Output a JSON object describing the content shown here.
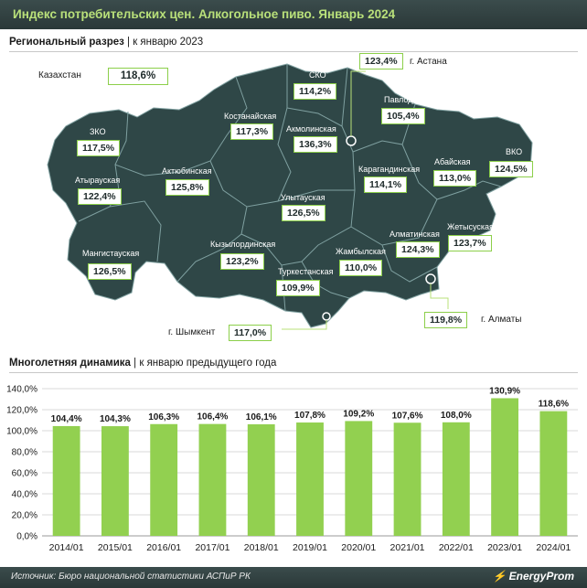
{
  "title": "Индекс потребительских цен. Алкогольное пиво. Январь 2024",
  "regional": {
    "heading_bold": "Региональный разрез",
    "heading_rest": " | к январю 2023",
    "country_label": "Казахстан",
    "country_value": "118,6%",
    "regions": [
      {
        "name": "СКО",
        "value": "114,2%"
      },
      {
        "name": "г. Астана",
        "value": "123,4%"
      },
      {
        "name": "Павлодарская",
        "value": "105,4%"
      },
      {
        "name": "Костанайская",
        "value": "117,3%"
      },
      {
        "name": "Акмолинская",
        "value": "136,3%"
      },
      {
        "name": "ЗКО",
        "value": "117,5%"
      },
      {
        "name": "Актюбинская",
        "value": "125,8%"
      },
      {
        "name": "Атырауская",
        "value": "122,4%"
      },
      {
        "name": "Карагандинская",
        "value": "114,1%"
      },
      {
        "name": "Абайская",
        "value": "113,0%"
      },
      {
        "name": "ВКО",
        "value": "124,5%"
      },
      {
        "name": "Улытауская",
        "value": "126,5%"
      },
      {
        "name": "Жетысуская",
        "value": "123,7%"
      },
      {
        "name": "Алматинская",
        "value": "124,3%"
      },
      {
        "name": "Мангистауская",
        "value": "126,5%"
      },
      {
        "name": "Кызылординская",
        "value": "123,2%"
      },
      {
        "name": "Жамбылская",
        "value": "110,0%"
      },
      {
        "name": "Туркестанская",
        "value": "109,9%"
      },
      {
        "name": "г. Шымкент",
        "value": "117,0%"
      },
      {
        "name": "г. Алматы",
        "value": "119,8%"
      }
    ]
  },
  "dynamics": {
    "heading_bold": "Многолетняя динамика",
    "heading_rest": " | к январю предыдущего года"
  },
  "chart_data": {
    "type": "bar",
    "categories": [
      "2014/01",
      "2015/01",
      "2016/01",
      "2017/01",
      "2018/01",
      "2019/01",
      "2020/01",
      "2021/01",
      "2022/01",
      "2023/01",
      "2024/01"
    ],
    "values": [
      104.4,
      104.3,
      106.3,
      106.4,
      106.1,
      107.8,
      109.2,
      107.6,
      108.0,
      130.9,
      118.6
    ],
    "labels": [
      "104,4%",
      "104,3%",
      "106,3%",
      "106,4%",
      "106,1%",
      "107,8%",
      "109,2%",
      "107,6%",
      "108,0%",
      "130,9%",
      "118,6%"
    ],
    "yticks": [
      "0,0%",
      "20,0%",
      "40,0%",
      "60,0%",
      "80,0%",
      "100,0%",
      "120,0%",
      "140,0%"
    ],
    "ylim": [
      0,
      140
    ],
    "bar_color": "#92d050",
    "grid": true
  },
  "footer": {
    "source": "Источник: Бюро национальной статистики АСПиР РК",
    "logo": "EnergyProm",
    "logo_icon": "lightning-icon"
  },
  "colors": {
    "map_fill": "#2f4747",
    "header": "#33413f",
    "accent": "#b9e07a"
  }
}
